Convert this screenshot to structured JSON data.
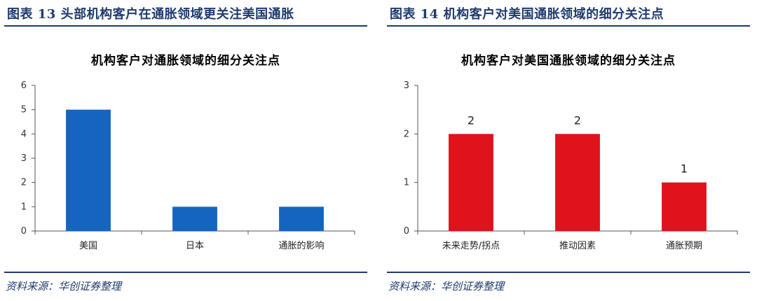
{
  "left": {
    "figure_title": "图表 13  头部机构客户在通胀领域更关注美国通胀",
    "source": "资料来源：华创证券整理",
    "chart_data": {
      "type": "bar",
      "title": "机构客户对通胀领域的细分关注点",
      "categories": [
        "美国",
        "日本",
        "通胀的影响"
      ],
      "values": [
        5,
        1,
        1
      ],
      "ylim": [
        0,
        6
      ],
      "yticks": [
        0,
        1,
        2,
        3,
        4,
        5,
        6
      ],
      "color": "#1565c0",
      "show_data_labels": false
    }
  },
  "right": {
    "figure_title": "图表 14  机构客户对美国通胀领域的细分关注点",
    "source": "资料来源：华创证券整理",
    "chart_data": {
      "type": "bar",
      "title": "机构客户对美国通胀领域的细分关注点",
      "categories": [
        "未来走势/拐点",
        "推动因素",
        "通胀预期"
      ],
      "values": [
        2,
        2,
        1
      ],
      "ylim": [
        0,
        3
      ],
      "yticks": [
        0,
        1,
        2,
        3
      ],
      "color": "#e0121c",
      "show_data_labels": true
    }
  }
}
